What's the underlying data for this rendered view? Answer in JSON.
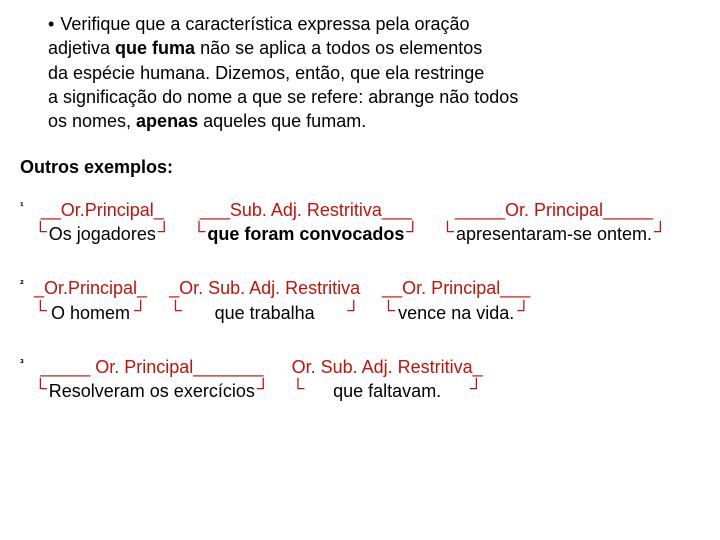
{
  "colors": {
    "accent": "#c0140a",
    "text": "#000000",
    "bg": "#ffffff"
  },
  "bullet": {
    "marker": "•",
    "line1a": "Verifique que a característica expressa pela oração",
    "line1b": "adjetiva ",
    "line1b_bold": "que fuma",
    "line1c": " não se aplica a todos os elementos",
    "line2": "da espécie humana. Dizemos, então, que ela restringe",
    "line3": "a significação do nome a que se refere: abrange não todos",
    "line4a": "os nomes, ",
    "line4b_bold": "apenas",
    "line4c": " aqueles que fumam."
  },
  "heading": "Outros exemplos:",
  "corner_left": "└",
  "corner_right": "┘",
  "examples": [
    {
      "num": "¹",
      "parts": [
        {
          "label": "__Or.Principal_",
          "text": "Os jogadores",
          "text_bold": false
        },
        {
          "label": "___Sub. Adj. Restritiva___",
          "text": "que foram convocados",
          "text_bold": true
        },
        {
          "label": "_____Or. Principal_____",
          "text": "apresentaram-se ontem.",
          "text_bold": false
        }
      ]
    },
    {
      "num": "²",
      "parts": [
        {
          "label": "_Or.Principal_",
          "text": "O homem",
          "text_bold": false
        },
        {
          "label": "_Or. Sub. Adj. Restritiva",
          "text": "que trabalha",
          "text_bold": false
        },
        {
          "label": "__Or. Principal___",
          "text": "vence na vida.",
          "text_bold": false
        }
      ]
    },
    {
      "num": "³",
      "parts": [
        {
          "label": "_____ Or. Principal_______",
          "text": "Resolveram os exercícios",
          "text_bold": false
        },
        {
          "label": "Or. Sub. Adj. Restritiva_",
          "text": "que faltavam.",
          "text_bold": false
        }
      ]
    }
  ]
}
